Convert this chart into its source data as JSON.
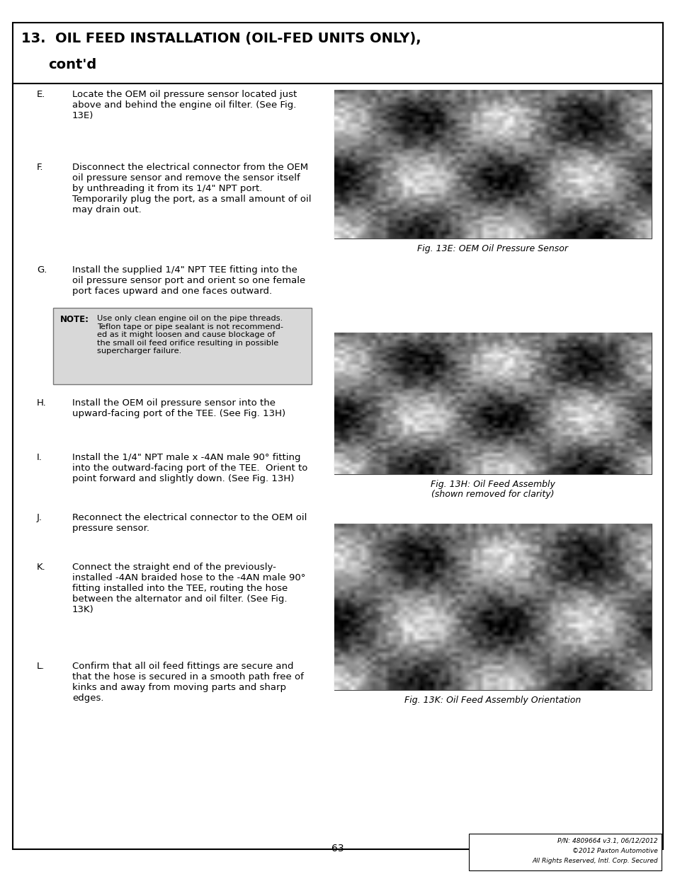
{
  "page_bg": "#ffffff",
  "border_color": "#000000",
  "title_line1": "13.  OIL FEED INSTALLATION (OIL-FED UNITS ONLY),",
  "title_line2": "      cont'd",
  "steps": [
    {
      "letter": "E.",
      "text": "Locate the OEM oil pressure sensor located just\nabove and behind the engine oil filter. (See Fig.\n13E)"
    },
    {
      "letter": "F.",
      "text": "Disconnect the electrical connector from the OEM\noil pressure sensor and remove the sensor itself\nby unthreading it from its 1/4\" NPT port.\nTemporarily plug the port, as a small amount of oil\nmay drain out."
    },
    {
      "letter": "G.",
      "text": "Install the supplied 1/4\" NPT TEE fitting into the\noil pressure sensor port and orient so one female\nport faces upward and one faces outward."
    },
    {
      "letter": "H.",
      "text": "Install the OEM oil pressure sensor into the\nupward-facing port of the TEE. (See Fig. 13H)"
    },
    {
      "letter": "I.",
      "text": "Install the 1/4\" NPT male x -4AN male 90° fitting\ninto the outward-facing port of the TEE.  Orient to\npoint forward and slightly down. (See Fig. 13H)"
    },
    {
      "letter": "J.",
      "text": "Reconnect the electrical connector to the OEM oil\npressure sensor."
    },
    {
      "letter": "K.",
      "text": "Connect the straight end of the previously-\ninstalled -4AN braided hose to the -4AN male 90°\nfitting installed into the TEE, routing the hose\nbetween the alternator and oil filter. (See Fig.\n13K)"
    },
    {
      "letter": "L.",
      "text": "Confirm that all oil feed fittings are secure and\nthat the hose is secured in a smooth path free of\nkinks and away from moving parts and sharp\nedges."
    }
  ],
  "note_label": "NOTE:",
  "note_text": "Use only clean engine oil on the pipe threads.\nTeflon tape or pipe sealant is not recommend-\ned as it might loosen and cause blockage of\nthe small oil feed orifice resulting in possible\nsupercharger failure.",
  "fig_captions": [
    "Fig. 13E: OEM Oil Pressure Sensor",
    "Fig. 13H: Oil Feed Assembly",
    "(shown removed for clarity)",
    "Fig. 13K: Oil Feed Assembly Orientation"
  ],
  "page_number": "63",
  "footer_line1": "P/N: 4809664 v3.1, 06/12/2012",
  "footer_line2": "©2012 Paxton Automotive",
  "footer_line3": "All Rights Reserved, Intl. Corp. Secured",
  "img1_colors": [
    "#2a2a2a",
    "#888888",
    "#ffffff",
    "#aaaaaa",
    "#cccccc",
    "#555555"
  ],
  "img2_colors": [
    "#b8860b",
    "#ccaa44",
    "#888888",
    "#aaaaaa",
    "#ffffff"
  ],
  "img3_colors": [
    "#333333",
    "#666666",
    "#888888",
    "#aaaaaa",
    "#cccccc"
  ]
}
